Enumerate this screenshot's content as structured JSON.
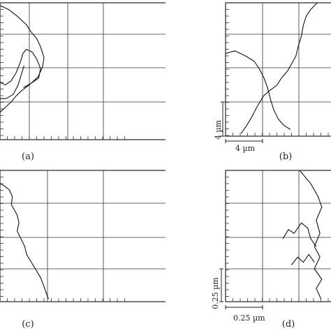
{
  "chart_data": [
    {
      "type": "line",
      "panel_label": "(a)",
      "grid": true,
      "scale_label": "",
      "series": [
        {
          "points": [
            [
              0,
              0.98
            ],
            [
              0.3,
              0.95
            ],
            [
              0.6,
              0.9
            ],
            [
              0.9,
              0.84
            ],
            [
              1.05,
              0.79
            ],
            [
              1.25,
              0.74
            ],
            [
              1.38,
              0.68
            ],
            [
              1.5,
              0.6
            ],
            [
              1.45,
              0.53
            ],
            [
              1.3,
              0.46
            ],
            [
              1.0,
              0.4
            ],
            [
              0.75,
              0.36
            ],
            [
              0.55,
              0.32
            ],
            [
              0.4,
              0.28
            ],
            [
              0.2,
              0.24
            ],
            [
              0,
              0.2
            ]
          ]
        },
        {
          "points": [
            [
              0,
              0.42
            ],
            [
              0.18,
              0.4
            ],
            [
              0.38,
              0.43
            ],
            [
              0.55,
              0.49
            ],
            [
              0.7,
              0.57
            ],
            [
              0.78,
              0.63
            ],
            [
              0.9,
              0.66
            ],
            [
              1.1,
              0.64
            ],
            [
              1.25,
              0.59
            ],
            [
              1.38,
              0.52
            ],
            [
              1.32,
              0.45
            ],
            [
              1.05,
              0.41
            ],
            [
              0.8,
              0.38
            ]
          ]
        },
        {
          "points": [
            [
              0,
              0.3
            ],
            [
              0.2,
              0.3
            ],
            [
              0.45,
              0.33
            ],
            [
              0.62,
              0.4
            ],
            [
              0.72,
              0.47
            ],
            [
              0.82,
              0.54
            ]
          ]
        }
      ]
    },
    {
      "type": "line",
      "panel_label": "(b)",
      "grid": true,
      "scale_label": "4 µm",
      "series": [
        {
          "points": [
            [
              0.42,
              0.02
            ],
            [
              0.55,
              0.07
            ],
            [
              0.7,
              0.14
            ],
            [
              0.85,
              0.22
            ],
            [
              1.02,
              0.3
            ],
            [
              1.18,
              0.34
            ],
            [
              1.38,
              0.38
            ],
            [
              1.52,
              0.44
            ],
            [
              1.68,
              0.49
            ],
            [
              1.8,
              0.55
            ],
            [
              1.9,
              0.6
            ],
            [
              1.97,
              0.68
            ],
            [
              2.05,
              0.75
            ],
            [
              2.1,
              0.83
            ],
            [
              2.18,
              0.9
            ],
            [
              2.3,
              0.95
            ],
            [
              2.48,
              1.0
            ]
          ]
        },
        {
          "points": [
            [
              0,
              0.62
            ],
            [
              0.25,
              0.64
            ],
            [
              0.55,
              0.6
            ],
            [
              0.78,
              0.56
            ],
            [
              0.92,
              0.5
            ],
            [
              1.05,
              0.43
            ],
            [
              1.15,
              0.35
            ],
            [
              1.22,
              0.27
            ],
            [
              1.3,
              0.2
            ],
            [
              1.42,
              0.13
            ],
            [
              1.58,
              0.08
            ],
            [
              1.75,
              0.05
            ]
          ]
        }
      ]
    },
    {
      "type": "line",
      "panel_label": "(c)",
      "grid": true,
      "scale_label": "",
      "series": [
        {
          "points": [
            [
              0,
              0.9
            ],
            [
              0.1,
              0.88
            ],
            [
              0.2,
              0.85
            ],
            [
              0.26,
              0.8
            ],
            [
              0.24,
              0.74
            ],
            [
              0.3,
              0.7
            ],
            [
              0.36,
              0.66
            ],
            [
              0.4,
              0.6
            ],
            [
              0.36,
              0.54
            ],
            [
              0.44,
              0.48
            ],
            [
              0.52,
              0.42
            ],
            [
              0.56,
              0.36
            ],
            [
              0.66,
              0.3
            ],
            [
              0.76,
              0.24
            ],
            [
              0.86,
              0.18
            ],
            [
              0.92,
              0.12
            ],
            [
              0.98,
              0.06
            ],
            [
              1.02,
              0.02
            ]
          ]
        }
      ]
    },
    {
      "type": "line",
      "panel_label": "(d)",
      "grid": true,
      "scale_label": "0.25 µm",
      "series": [
        {
          "points": [
            [
              2.0,
              1.0
            ],
            [
              2.3,
              0.9
            ],
            [
              2.5,
              0.8
            ],
            [
              2.6,
              0.72
            ],
            [
              2.45,
              0.62
            ],
            [
              2.55,
              0.52
            ],
            [
              2.4,
              0.42
            ],
            [
              2.55,
              0.34
            ],
            [
              2.4,
              0.25
            ],
            [
              2.6,
              0.17
            ],
            [
              2.45,
              0.1
            ],
            [
              2.58,
              0.02
            ]
          ]
        },
        {
          "points": [
            [
              1.55,
              0.48
            ],
            [
              1.7,
              0.55
            ],
            [
              1.85,
              0.52
            ],
            [
              2.05,
              0.6
            ],
            [
              2.22,
              0.56
            ],
            [
              2.3,
              0.48
            ],
            [
              2.45,
              0.42
            ]
          ]
        },
        {
          "points": [
            [
              1.78,
              0.28
            ],
            [
              1.95,
              0.34
            ],
            [
              2.1,
              0.3
            ],
            [
              2.25,
              0.36
            ],
            [
              2.4,
              0.3
            ]
          ]
        }
      ]
    }
  ]
}
